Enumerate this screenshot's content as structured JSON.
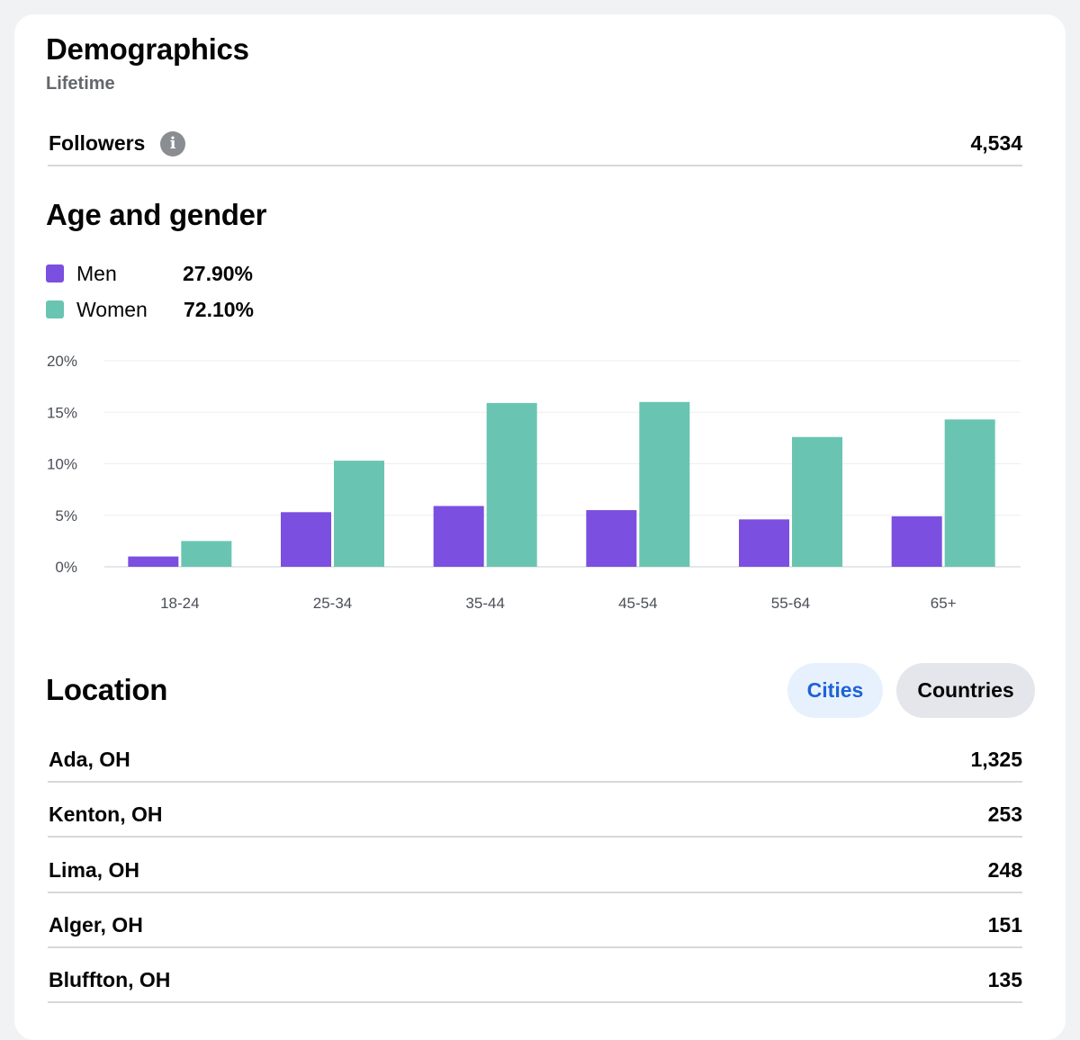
{
  "header": {
    "title": "Demographics",
    "subtitle": "Lifetime"
  },
  "followers": {
    "label": "Followers",
    "value": "4,534",
    "info_icon": "info-icon"
  },
  "age_gender": {
    "title": "Age and gender",
    "legend": [
      {
        "name": "Men",
        "percent": "27.90%",
        "color": "#7b4fe0"
      },
      {
        "name": "Women",
        "percent": "72.10%",
        "color": "#69c5b1"
      }
    ]
  },
  "chart_data": {
    "type": "bar",
    "categories": [
      "18-24",
      "25-34",
      "35-44",
      "45-54",
      "55-64",
      "65+"
    ],
    "series": [
      {
        "name": "Men",
        "values": [
          1.0,
          5.3,
          5.9,
          5.5,
          4.6,
          4.9
        ],
        "color": "#7b4fe0"
      },
      {
        "name": "Women",
        "values": [
          2.5,
          10.3,
          15.9,
          16.0,
          12.6,
          14.3
        ],
        "color": "#69c5b1"
      }
    ],
    "yticks": [
      "0%",
      "5%",
      "10%",
      "15%",
      "20%"
    ],
    "ylim": [
      0,
      20
    ],
    "grid": true,
    "legend_placement": "top-left",
    "title": "",
    "xlabel": "",
    "ylabel": ""
  },
  "location": {
    "title": "Location",
    "tabs": [
      {
        "label": "Cities",
        "selected": true
      },
      {
        "label": "Countries",
        "selected": false
      }
    ],
    "rows": [
      {
        "place": "Ada, OH",
        "count": "1,325"
      },
      {
        "place": "Kenton, OH",
        "count": "253"
      },
      {
        "place": "Lima, OH",
        "count": "248"
      },
      {
        "place": "Alger, OH",
        "count": "151"
      },
      {
        "place": "Bluffton, OH",
        "count": "135"
      }
    ]
  }
}
